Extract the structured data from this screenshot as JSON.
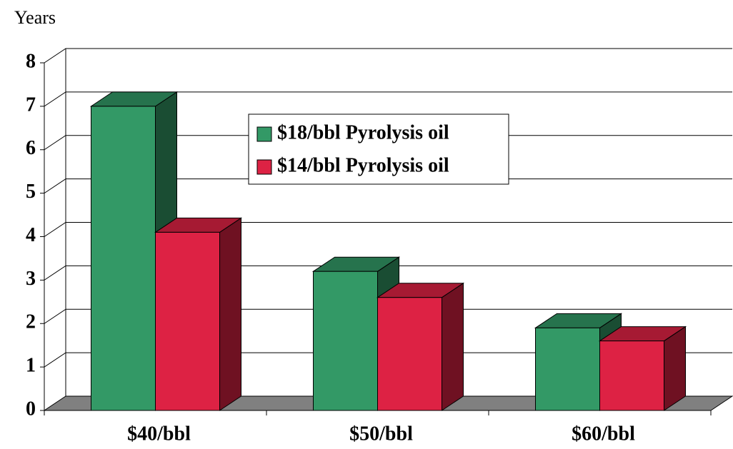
{
  "chart_data": {
    "type": "bar3d",
    "y_label": "Years",
    "categories": [
      "$40/bbl",
      "$50/bbl",
      "$60/bbl"
    ],
    "series": [
      {
        "name": "$18/bbl Pyrolysis oil",
        "color": "#339966",
        "values": [
          7,
          3.2,
          1.9
        ]
      },
      {
        "name": "$14/bbl Pyrolysis oil",
        "color": "#dd2244",
        "values": [
          4.1,
          2.6,
          1.6
        ]
      }
    ],
    "ylim": [
      0,
      8
    ],
    "yticks": [
      0,
      1,
      2,
      3,
      4,
      5,
      6,
      7,
      8
    ],
    "grid": true,
    "legend": "top-center"
  }
}
